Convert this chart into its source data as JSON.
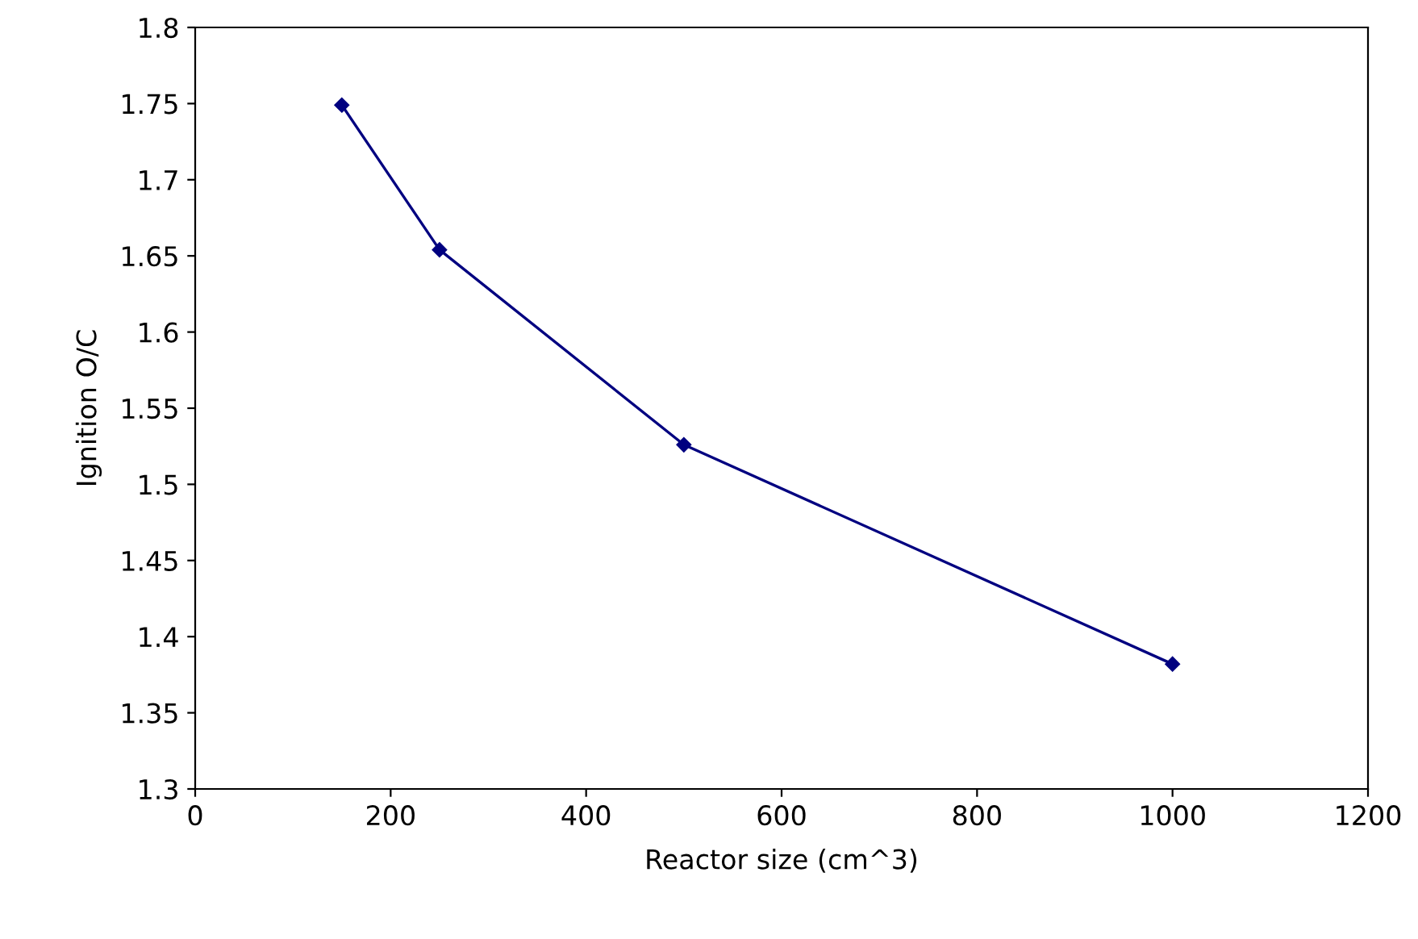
{
  "chart_data": {
    "type": "line",
    "xlabel": "Reactor size (cm^3)",
    "ylabel": "Ignition O/C",
    "x": [
      150,
      250,
      500,
      1000
    ],
    "series": [
      {
        "color": "#000080",
        "values": [
          1.749,
          1.654,
          1.526,
          1.382
        ]
      }
    ],
    "xlim": [
      0,
      1200
    ],
    "xticks": [
      0,
      200,
      400,
      600,
      800,
      1000,
      1200
    ],
    "ylim": [
      1.3,
      1.8
    ],
    "yticks": [
      1.3,
      1.35,
      1.4,
      1.45,
      1.5,
      1.55,
      1.6,
      1.65,
      1.7,
      1.75,
      1.8
    ],
    "grid": false,
    "legend": false,
    "marker": "diamond",
    "line_style": "solid"
  }
}
